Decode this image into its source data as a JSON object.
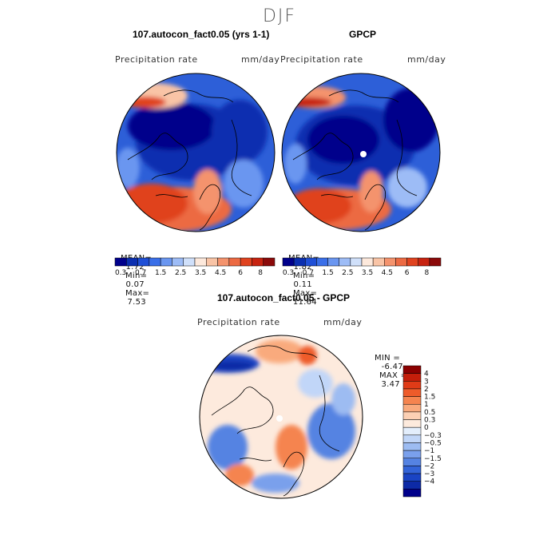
{
  "figure": {
    "season": "DJF"
  },
  "panels": [
    {
      "title": "107.autocon_fact0.05 (yrs 1-1)",
      "variable": "Precipitation rate",
      "units": "mm/day",
      "mean_label": "MEAN=",
      "mean": "1.72",
      "min_label": "Min=",
      "min": "0.07",
      "max_label": "Max=",
      "max": "7.53"
    },
    {
      "title": "GPCP",
      "variable": "Precipitation rate",
      "units": "mm/day",
      "mean_label": "MEAN=",
      "mean": "1.82",
      "min_label": "Min=",
      "min": "0.11",
      "max_label": "Max=",
      "max": "11.64"
    },
    {
      "title": "107.autocon_fact0.05 - GPCP",
      "variable": "Precipitation rate",
      "units": "mm/day",
      "min_label": "MIN =",
      "min": "-6.47",
      "max_label": "MAX =",
      "max": "3.47"
    }
  ],
  "colorbars": {
    "absolute": {
      "colors": [
        "#00008b",
        "#0b2fb0",
        "#1f4fd6",
        "#3a6fe8",
        "#6a96f0",
        "#9dbcf6",
        "#d0e0fa",
        "#fde9dc",
        "#f9c4a6",
        "#f4936d",
        "#ec6a43",
        "#e0431f",
        "#c72310",
        "#8b0a0a"
      ],
      "tick_labels": [
        "0.3",
        "0.7",
        "1.5",
        "2.5",
        "3.5",
        "4.5",
        "6",
        "8"
      ]
    },
    "difference": {
      "colors": [
        "#8b0000",
        "#c41e0a",
        "#e03b17",
        "#ee5b2a",
        "#f5844f",
        "#f9aa7d",
        "#fcd0b4",
        "#fdeadd",
        "#e3eefc",
        "#c1d6f8",
        "#9dbcf2",
        "#7aa0ec",
        "#5583e2",
        "#3364d8",
        "#1a44c4",
        "#0d2aa6",
        "#00008b"
      ],
      "tick_labels": [
        "4",
        "3",
        "2",
        "1.5",
        "1",
        "0.5",
        "0.3",
        "0",
        "−0.3",
        "−0.5",
        "−1",
        "−1.5",
        "−2",
        "−3",
        "−4"
      ]
    }
  },
  "chart_data": [
    {
      "type": "heatmap",
      "projection": "north-polar-stereographic",
      "title": "107.autocon_fact0.05 (yrs 1-1)",
      "variable": "Precipitation rate",
      "units": "mm/day",
      "stats": {
        "mean": 1.72,
        "min": 0.07,
        "max": 7.53
      },
      "levels": [
        0.3,
        0.7,
        1.5,
        2.5,
        3.5,
        4.5,
        6,
        8
      ]
    },
    {
      "type": "heatmap",
      "projection": "north-polar-stereographic",
      "title": "GPCP",
      "variable": "Precipitation rate",
      "units": "mm/day",
      "stats": {
        "mean": 1.82,
        "min": 0.11,
        "max": 11.64
      },
      "levels": [
        0.3,
        0.7,
        1.5,
        2.5,
        3.5,
        4.5,
        6,
        8
      ]
    },
    {
      "type": "heatmap",
      "projection": "north-polar-stereographic",
      "title": "107.autocon_fact0.05 - GPCP",
      "variable": "Precipitation rate",
      "units": "mm/day",
      "stats": {
        "min": -6.47,
        "max": 3.47
      },
      "levels": [
        -4,
        -3,
        -2,
        -1.5,
        -1,
        -0.5,
        -0.3,
        0,
        0.3,
        0.5,
        1,
        1.5,
        2,
        3,
        4
      ],
      "legend_position": "right"
    }
  ]
}
